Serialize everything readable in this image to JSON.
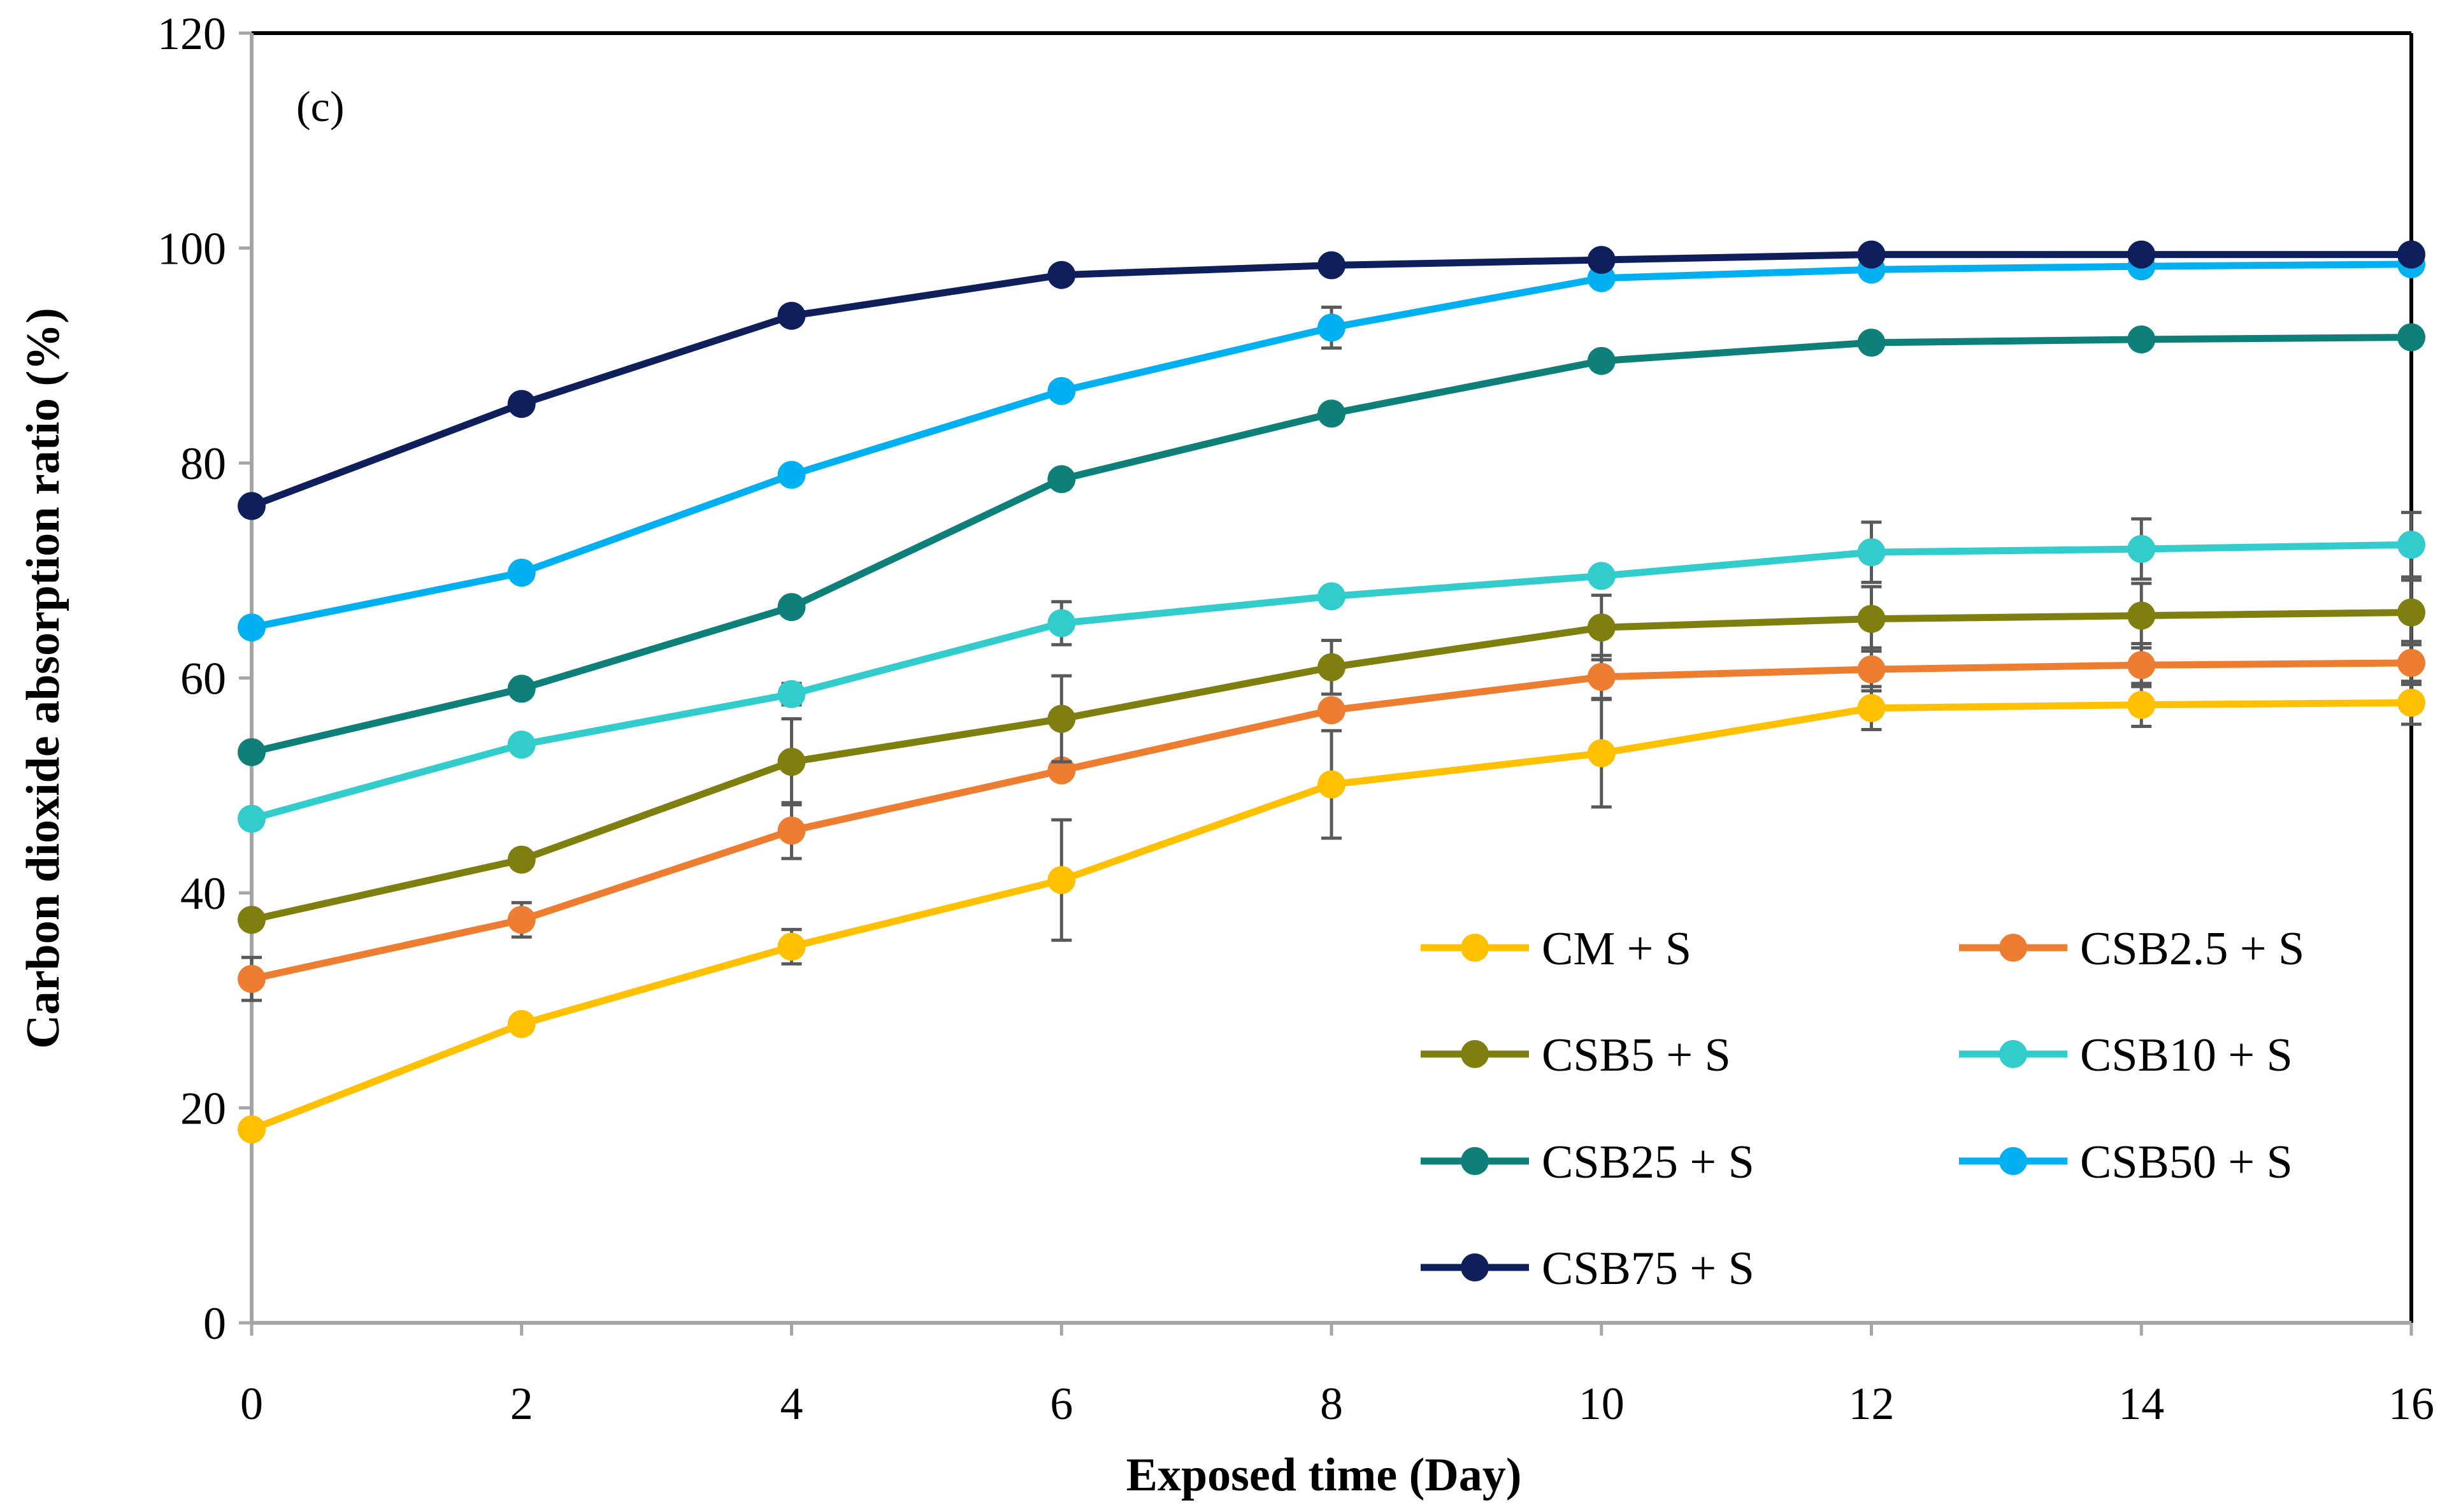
{
  "chart_data": {
    "type": "line",
    "panel_label": "(c)",
    "xlabel": "Exposed time (Day)",
    "ylabel": "Carbon dioxide absorption ratio (%)",
    "x": [
      0,
      2,
      4,
      6,
      8,
      10,
      12,
      14,
      16
    ],
    "x_ticks": [
      "0",
      "2",
      "4",
      "6",
      "8",
      "10",
      "12",
      "14",
      "16"
    ],
    "y_ticks": [
      "0",
      "20",
      "40",
      "60",
      "80",
      "100",
      "120"
    ],
    "xlim": [
      0,
      16
    ],
    "ylim": [
      0,
      120
    ],
    "grid": false,
    "legend_position": "bottom-right",
    "series": [
      {
        "name": "CM + S",
        "color": "#FFC000",
        "values": [
          18,
          27.8,
          35,
          41.2,
          50.1,
          53,
          57.2,
          57.5,
          57.7
        ],
        "error": [
          0,
          0,
          1.6,
          5.6,
          5,
          5,
          2,
          2,
          2
        ]
      },
      {
        "name": "CSB2.5 + S",
        "color": "#ED7D31",
        "values": [
          32,
          37.5,
          45.8,
          51.4,
          57,
          60.1,
          60.8,
          61.2,
          61.4
        ],
        "error": [
          2,
          1.6,
          2.6,
          0,
          0,
          2,
          2,
          2,
          2
        ]
      },
      {
        "name": "CSB5 + S",
        "color": "#7F7F0F",
        "values": [
          37.5,
          43.1,
          52.2,
          56.2,
          61,
          64.7,
          65.5,
          65.8,
          66.1
        ],
        "error": [
          0,
          0,
          4,
          4,
          2.5,
          3,
          3,
          3,
          3
        ]
      },
      {
        "name": "CSB10 + S",
        "color": "#33CCCC",
        "values": [
          46.9,
          53.8,
          58.5,
          65.1,
          67.6,
          69.5,
          71.7,
          72,
          72.4
        ],
        "error": [
          0,
          0,
          1,
          2,
          0,
          0,
          2.8,
          2.8,
          3
        ]
      },
      {
        "name": "CSB25 + S",
        "color": "#0F7F7A",
        "values": [
          53.1,
          59,
          66.6,
          78.5,
          84.6,
          89.5,
          91.2,
          91.5,
          91.7
        ],
        "error": [
          0,
          0,
          0,
          0,
          0,
          0,
          0,
          0,
          0
        ]
      },
      {
        "name": "CSB50 + S",
        "color": "#00B0F0",
        "values": [
          64.7,
          69.8,
          78.9,
          86.7,
          92.6,
          97.2,
          98,
          98.3,
          98.5
        ],
        "error": [
          0,
          0,
          0,
          0,
          1.9,
          0,
          0,
          0,
          0
        ]
      },
      {
        "name": "CSB75 + S",
        "color": "#0F1F5C",
        "values": [
          76,
          85.5,
          93.7,
          97.5,
          98.4,
          98.9,
          99.4,
          99.4,
          99.4
        ],
        "error": [
          0,
          0,
          0,
          0,
          0,
          0,
          0,
          0,
          0
        ]
      }
    ]
  }
}
